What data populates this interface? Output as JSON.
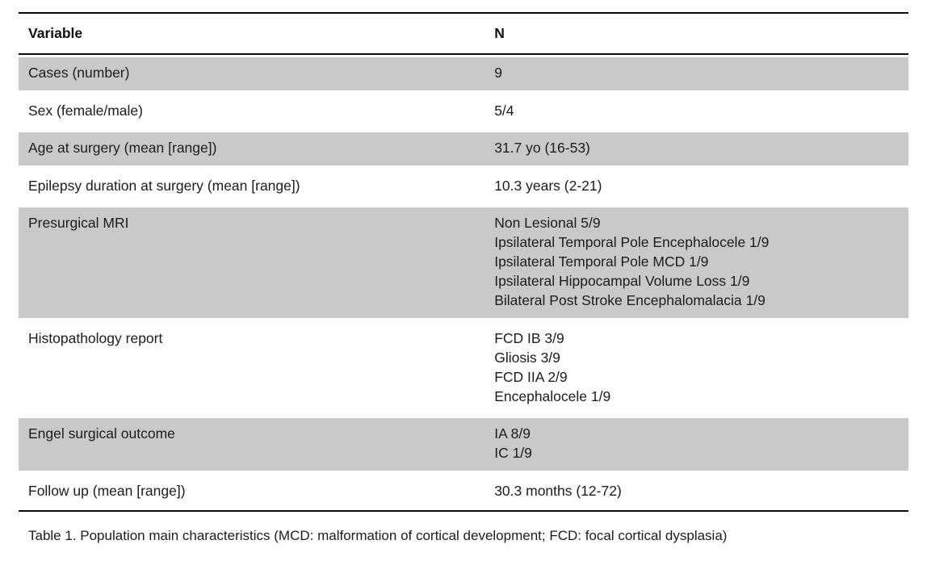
{
  "table": {
    "columns": [
      "Variable",
      "N"
    ],
    "rows": [
      {
        "variable": "Cases (number)",
        "values": [
          "9"
        ]
      },
      {
        "variable": "Sex (female/male)",
        "values": [
          "5/4"
        ]
      },
      {
        "variable": "Age at surgery (mean [range])",
        "values": [
          "31.7 yo (16-53)"
        ]
      },
      {
        "variable": "Epilepsy duration at surgery (mean [range])",
        "values": [
          "10.3 years (2-21)"
        ]
      },
      {
        "variable": "Presurgical MRI",
        "values": [
          "Non Lesional 5/9",
          "Ipsilateral Temporal Pole Encephalocele 1/9",
          "Ipsilateral Temporal Pole MCD 1/9",
          "Ipsilateral Hippocampal Volume Loss 1/9",
          "Bilateral Post Stroke Encephalomalacia 1/9"
        ]
      },
      {
        "variable": "Histopathology report",
        "values": [
          "FCD IB 3/9",
          "Gliosis 3/9",
          "FCD IIA 2/9",
          "Encephalocele 1/9"
        ]
      },
      {
        "variable": "Engel surgical outcome",
        "values": [
          "IA 8/9",
          "IC 1/9"
        ]
      },
      {
        "variable": "Follow up (mean [range])",
        "values": [
          "30.3 months (12-72)"
        ]
      }
    ],
    "caption": "Table 1. Population main characteristics (MCD: malformation of cortical development; FCD: focal cortical dysplasia)"
  },
  "colors": {
    "row_shade": "#c9c9c9",
    "rule": "#0a0a0a",
    "text": "#1c1c1c"
  }
}
